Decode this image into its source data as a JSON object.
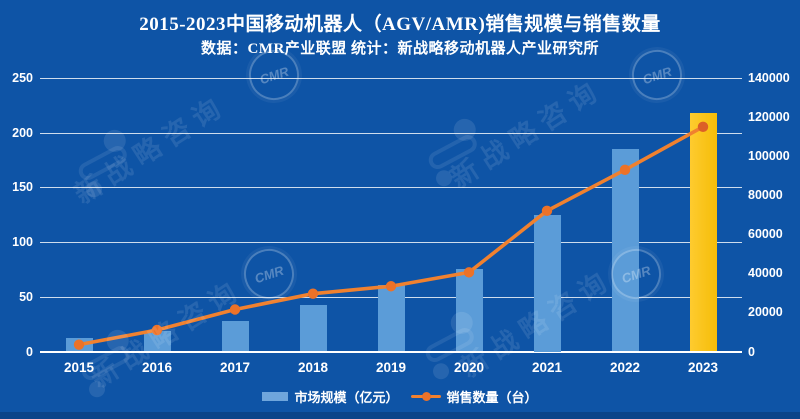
{
  "header": {
    "title": "2015-2023中国移动机器人（AGV/AMR)销售规模与销售数量",
    "subtitle": "数据：CMR产业联盟 统计：新战略移动机器人产业研究所"
  },
  "legend": [
    {
      "label": "市场规模（亿元）",
      "swatch": "bar"
    },
    {
      "label": "销售数量（台）",
      "swatch": "line"
    }
  ],
  "watermark": {
    "brand_text": "新战略咨询",
    "seal_text": "CMR"
  },
  "colors": {
    "background": "#0E54A6",
    "bar": "#5B9CD8",
    "bar_highlight": "#F9C214",
    "line": "#F0812F",
    "dot": "#EC7228",
    "dot_last": "#DC5F27",
    "gridline": "rgba(255,255,255,0.8)",
    "text": "#FFFFFF"
  },
  "chart_data": {
    "type": "bar",
    "subtype": "combo-bar-line-dual-axis",
    "title": "2015-2023中国移动机器人（AGV/AMR)销售规模与销售数量",
    "categories": [
      "2015",
      "2016",
      "2017",
      "2018",
      "2019",
      "2020",
      "2021",
      "2022",
      "2023"
    ],
    "series": [
      {
        "name": "市场规模（亿元）",
        "type": "bar",
        "axis": "left",
        "values": [
          12,
          19,
          28,
          42.5,
          61,
          75,
          125,
          185,
          218
        ]
      },
      {
        "name": "销售数量（台）",
        "type": "line",
        "axis": "right",
        "values": [
          3500,
          11000,
          21500,
          29600,
          33400,
          40500,
          72000,
          93000,
          115000
        ]
      }
    ],
    "left_axis": {
      "min": 0,
      "max": 250,
      "ticks": [
        0,
        50,
        100,
        150,
        200,
        250
      ]
    },
    "right_axis": {
      "min": 0,
      "max": 140000,
      "ticks": [
        0,
        20000,
        40000,
        60000,
        80000,
        100000,
        120000,
        140000
      ]
    },
    "grid": true,
    "highlight_last_bar": true,
    "legend_position": "bottom"
  }
}
